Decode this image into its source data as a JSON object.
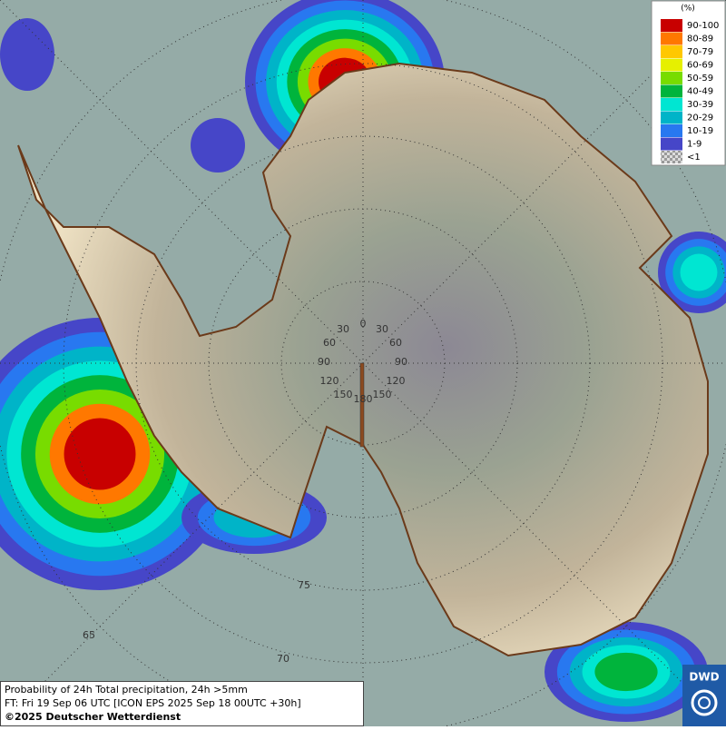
{
  "legend": {
    "title": "(%)",
    "items": [
      {
        "label": "90-100",
        "color": "#c80000"
      },
      {
        "label": "80-89",
        "color": "#ff7800"
      },
      {
        "label": "70-79",
        "color": "#ffc800"
      },
      {
        "label": "60-69",
        "color": "#e6f000"
      },
      {
        "label": "50-59",
        "color": "#78dc00"
      },
      {
        "label": "40-49",
        "color": "#00b43c"
      },
      {
        "label": "30-39",
        "color": "#00e6d2"
      },
      {
        "label": "20-29",
        "color": "#00b4c8"
      },
      {
        "label": "10-19",
        "color": "#2878f0"
      },
      {
        "label": "1-9",
        "color": "#4646c8"
      },
      {
        "label": "<1",
        "color": "#b0b0b0"
      }
    ]
  },
  "longitude_labels": [
    "0",
    "30",
    "30",
    "60",
    "60",
    "90",
    "90",
    "120",
    "120",
    "150",
    "150",
    "180"
  ],
  "latitude_labels": [
    "75",
    "65",
    "70"
  ],
  "footer": {
    "line1": "Probability of 24h Total precipitation, 24h >5mm",
    "line2": "FT: Fri 19 Sep 06 UTC [ICON EPS 2025 Sep 18 00UTC +30h]",
    "line3": "©2025 Deutscher Wetterdienst"
  },
  "logo": "DWD"
}
